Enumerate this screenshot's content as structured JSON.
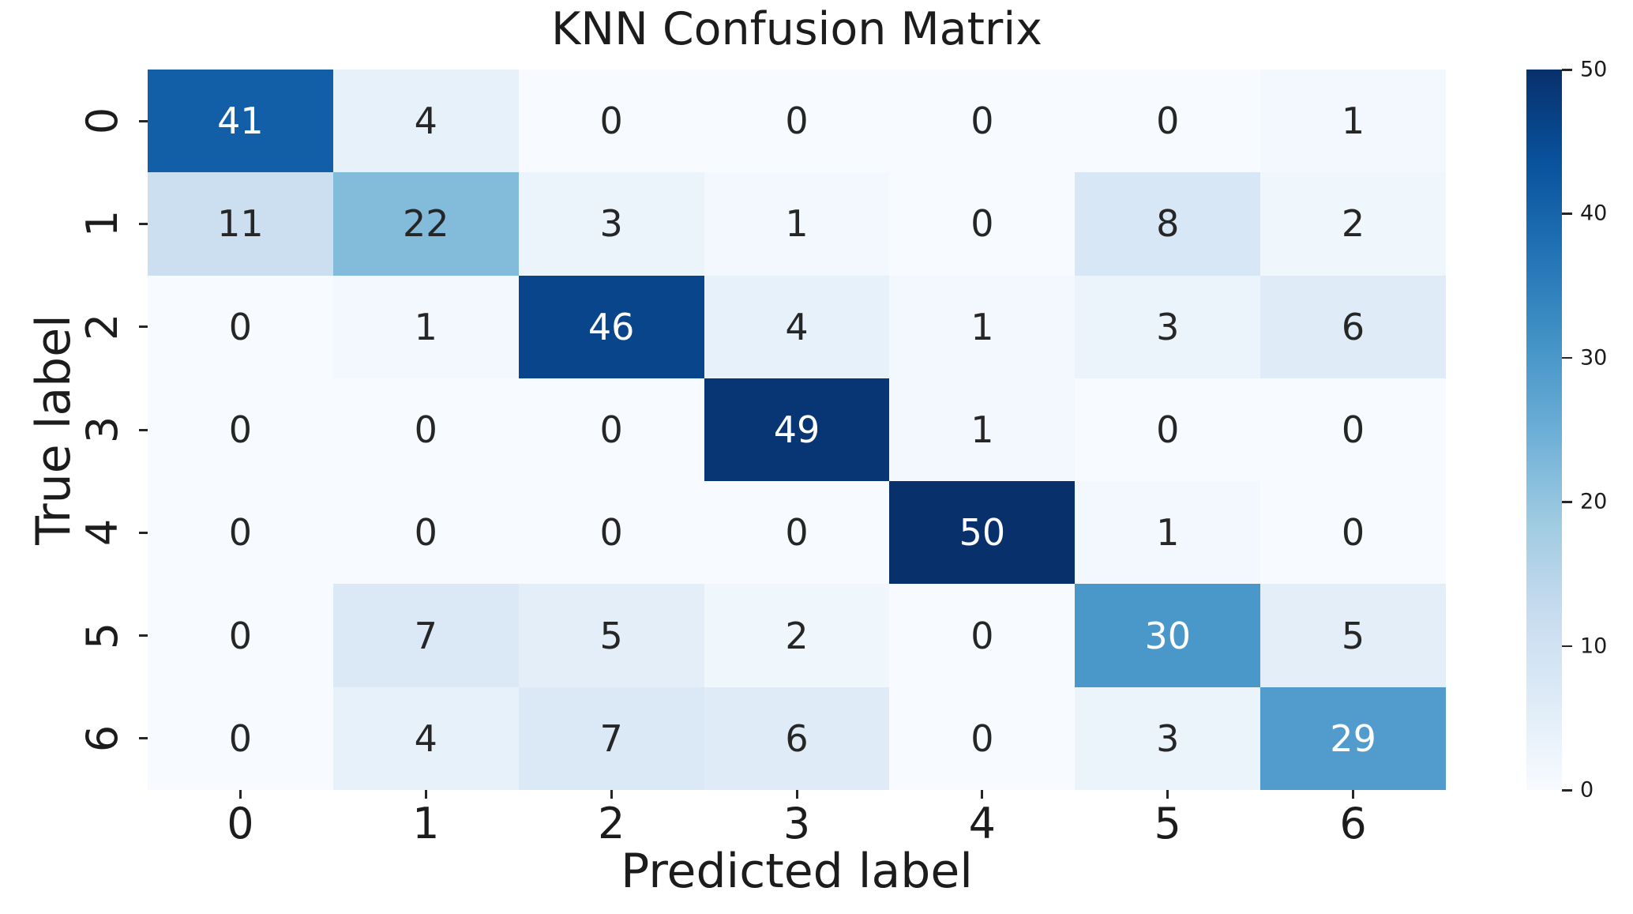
{
  "figure": {
    "background": "#ffffff"
  },
  "chart_data": {
    "type": "heatmap",
    "title": "KNN Confusion Matrix",
    "xlabel": "Predicted label",
    "ylabel": "True label",
    "x_tick_labels": [
      "0",
      "1",
      "2",
      "3",
      "4",
      "5",
      "6"
    ],
    "y_tick_labels": [
      "0",
      "1",
      "2",
      "3",
      "4",
      "5",
      "6"
    ],
    "matrix": [
      [
        41,
        4,
        0,
        0,
        0,
        0,
        1
      ],
      [
        11,
        22,
        3,
        1,
        0,
        8,
        2
      ],
      [
        0,
        1,
        46,
        4,
        1,
        3,
        6
      ],
      [
        0,
        0,
        0,
        49,
        1,
        0,
        0
      ],
      [
        0,
        0,
        0,
        0,
        50,
        1,
        0
      ],
      [
        0,
        7,
        5,
        2,
        0,
        30,
        5
      ],
      [
        0,
        4,
        7,
        6,
        0,
        3,
        29
      ]
    ],
    "vmin": 0,
    "vmax": 50,
    "colormap": "Blues",
    "colormap_stops": [
      "#f7fbff",
      "#deebf7",
      "#c6dbef",
      "#9ecae1",
      "#6baed6",
      "#4292c6",
      "#2171b5",
      "#08519c",
      "#08306b"
    ],
    "colorbar_ticks": [
      0,
      10,
      20,
      30,
      40,
      50
    ],
    "colorbar_position": "right",
    "annotation_color_dark": "#262626",
    "annotation_color_light": "#ffffff",
    "grid": false
  }
}
